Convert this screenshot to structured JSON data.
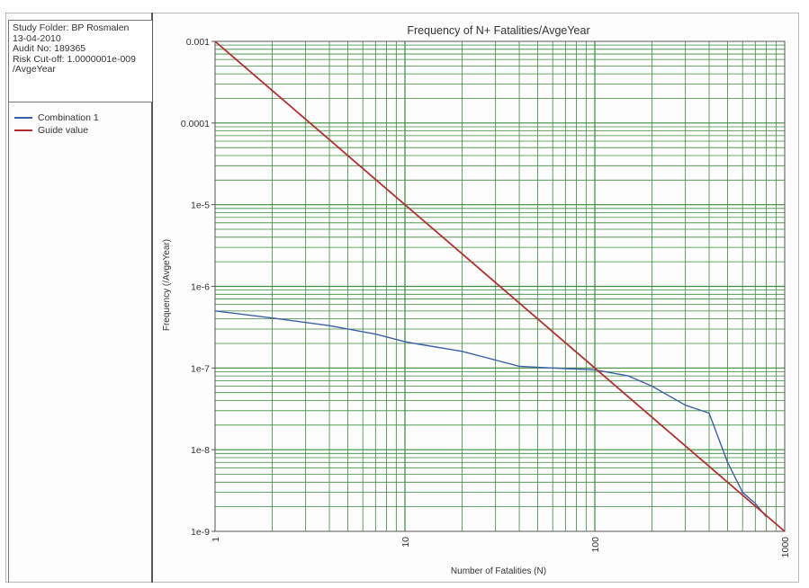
{
  "info": {
    "line1": "Study Folder: BP Rosmalen",
    "line2": "13-04-2010",
    "line3": "Audit No: 189365",
    "line4": "Risk Cut-off: 1.0000001e-009",
    "line5": "/AvgeYear"
  },
  "legend": [
    {
      "label": "Combination 1",
      "color": "#3b5fa8"
    },
    {
      "label": "Guide value",
      "color": "#b03030"
    }
  ],
  "chart_data": {
    "type": "line",
    "title": "Frequency of N+ Fatalities/AvgeYear",
    "xlabel": "Number of Fatalities (N)",
    "ylabel": "Frequency (/AvgeYear)",
    "x_scale": "log",
    "y_scale": "log",
    "xlim": [
      1,
      1000
    ],
    "ylim": [
      1e-09,
      0.001
    ],
    "x_ticks": [
      {
        "value": 1,
        "label": "1"
      },
      {
        "value": 10,
        "label": "10"
      },
      {
        "value": 100,
        "label": "100"
      },
      {
        "value": 1000,
        "label": "1000"
      }
    ],
    "y_ticks": [
      {
        "value": 0.001,
        "label": "0.001"
      },
      {
        "value": 0.0001,
        "label": "0.0001"
      },
      {
        "value": 1e-05,
        "label": "1e-5"
      },
      {
        "value": 1e-06,
        "label": "1e-6"
      },
      {
        "value": 1e-07,
        "label": "1e-7"
      },
      {
        "value": 1e-08,
        "label": "1e-8"
      },
      {
        "value": 1e-09,
        "label": "1e-9"
      }
    ],
    "grid": true,
    "legend_position": "left panel",
    "colors": {
      "grid": "#3c8a3c",
      "plot_border": "#555555"
    },
    "series": [
      {
        "name": "Combination 1",
        "color": "#3b5fa8",
        "points": [
          [
            1,
            5e-07
          ],
          [
            2,
            4.1e-07
          ],
          [
            4,
            3.3e-07
          ],
          [
            7,
            2.6e-07
          ],
          [
            10,
            2.1e-07
          ],
          [
            12,
            1.95e-07
          ],
          [
            20,
            1.6e-07
          ],
          [
            30,
            1.25e-07
          ],
          [
            40,
            1.05e-07
          ],
          [
            60,
            1e-07
          ],
          [
            100,
            9.5e-08
          ],
          [
            150,
            8e-08
          ],
          [
            200,
            6e-08
          ],
          [
            300,
            3.5e-08
          ],
          [
            400,
            2.8e-08
          ],
          [
            500,
            7e-09
          ],
          [
            600,
            3e-09
          ],
          [
            700,
            2.2e-09
          ],
          [
            800,
            1.5e-09
          ]
        ]
      },
      {
        "name": "Guide value",
        "color": "#b03030",
        "points": [
          [
            1,
            0.001
          ],
          [
            1000,
            1e-09
          ]
        ]
      }
    ]
  }
}
